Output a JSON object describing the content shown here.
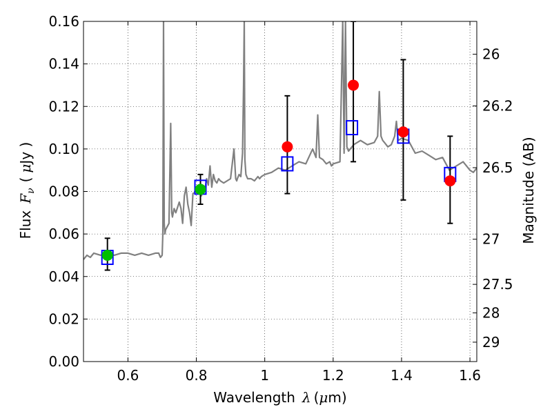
{
  "chart_data": {
    "type": "scatter",
    "title": "",
    "xlabel": "Wavelength",
    "xlabel_symbol": "λ",
    "xlabel_unit_open": "(",
    "xlabel_unit_mu": "μ",
    "xlabel_unit_rest": "m)",
    "ylabel": "Flux",
    "ylabel_symbol_base": "F",
    "ylabel_symbol_sub": "ν",
    "ylabel_unit_open": "(",
    "ylabel_unit_mu": "μ",
    "ylabel_unit_rest": "Jy )",
    "y2label": "Magnitude (AB)",
    "xlim": [
      0.47,
      1.62
    ],
    "ylim": [
      0.0,
      0.16
    ],
    "grid": true,
    "x_ticks": [
      {
        "value": 0.6,
        "label": "0.6"
      },
      {
        "value": 0.8,
        "label": "0.8"
      },
      {
        "value": 1.0,
        "label": "1"
      },
      {
        "value": 1.2,
        "label": "1.2"
      },
      {
        "value": 1.4,
        "label": "1.4"
      },
      {
        "value": 1.6,
        "label": "1.6"
      }
    ],
    "y_ticks": [
      {
        "value": 0.0,
        "label": "0.00"
      },
      {
        "value": 0.02,
        "label": "0.02"
      },
      {
        "value": 0.04,
        "label": "0.04"
      },
      {
        "value": 0.06,
        "label": "0.06"
      },
      {
        "value": 0.08,
        "label": "0.08"
      },
      {
        "value": 0.1,
        "label": "0.10"
      },
      {
        "value": 0.12,
        "label": "0.12"
      },
      {
        "value": 0.14,
        "label": "0.14"
      },
      {
        "value": 0.16,
        "label": "0.16"
      }
    ],
    "y2_ticks": [
      {
        "value": 26,
        "label": "26"
      },
      {
        "value": 26.2,
        "label": "26.2"
      },
      {
        "value": 26.5,
        "label": "26.5"
      },
      {
        "value": 27,
        "label": "27"
      },
      {
        "value": 27.5,
        "label": "27.5"
      },
      {
        "value": 28,
        "label": "28"
      },
      {
        "value": 29,
        "label": "29"
      }
    ],
    "model_spectrum": {
      "color": "#808080",
      "x": [
        0.47,
        0.48,
        0.49,
        0.5,
        0.52,
        0.54,
        0.56,
        0.58,
        0.6,
        0.62,
        0.64,
        0.66,
        0.68,
        0.69,
        0.695,
        0.7,
        0.702,
        0.704,
        0.706,
        0.708,
        0.71,
        0.72,
        0.725,
        0.728,
        0.73,
        0.735,
        0.74,
        0.75,
        0.755,
        0.76,
        0.765,
        0.77,
        0.775,
        0.78,
        0.785,
        0.79,
        0.8,
        0.81,
        0.815,
        0.82,
        0.825,
        0.83,
        0.835,
        0.84,
        0.845,
        0.85,
        0.855,
        0.86,
        0.865,
        0.87,
        0.88,
        0.89,
        0.9,
        0.91,
        0.915,
        0.918,
        0.92,
        0.925,
        0.93,
        0.935,
        0.938,
        0.94,
        0.942,
        0.945,
        0.95,
        0.96,
        0.97,
        0.98,
        0.985,
        0.99,
        1.0,
        1.02,
        1.04,
        1.06,
        1.08,
        1.1,
        1.12,
        1.14,
        1.15,
        1.155,
        1.16,
        1.17,
        1.18,
        1.19,
        1.195,
        1.2,
        1.22,
        1.228,
        1.232,
        1.236,
        1.24,
        1.245,
        1.25,
        1.26,
        1.28,
        1.3,
        1.32,
        1.33,
        1.335,
        1.34,
        1.345,
        1.35,
        1.36,
        1.37,
        1.38,
        1.385,
        1.39,
        1.4,
        1.42,
        1.44,
        1.46,
        1.48,
        1.5,
        1.52,
        1.54,
        1.56,
        1.58,
        1.6,
        1.61,
        1.62
      ],
      "y": [
        0.048,
        0.05,
        0.049,
        0.051,
        0.05,
        0.051,
        0.05,
        0.051,
        0.051,
        0.05,
        0.051,
        0.05,
        0.051,
        0.051,
        0.049,
        0.05,
        0.06,
        0.16,
        0.065,
        0.06,
        0.062,
        0.065,
        0.112,
        0.07,
        0.068,
        0.072,
        0.07,
        0.075,
        0.072,
        0.065,
        0.078,
        0.082,
        0.074,
        0.07,
        0.064,
        0.079,
        0.08,
        0.079,
        0.078,
        0.082,
        0.081,
        0.086,
        0.083,
        0.092,
        0.082,
        0.088,
        0.085,
        0.084,
        0.086,
        0.085,
        0.084,
        0.085,
        0.086,
        0.1,
        0.086,
        0.085,
        0.086,
        0.088,
        0.087,
        0.098,
        0.13,
        0.16,
        0.095,
        0.088,
        0.086,
        0.086,
        0.085,
        0.087,
        0.086,
        0.087,
        0.088,
        0.089,
        0.091,
        0.09,
        0.092,
        0.094,
        0.093,
        0.1,
        0.096,
        0.116,
        0.096,
        0.095,
        0.093,
        0.094,
        0.092,
        0.093,
        0.094,
        0.16,
        0.098,
        0.16,
        0.101,
        0.099,
        0.1,
        0.102,
        0.104,
        0.102,
        0.103,
        0.106,
        0.127,
        0.106,
        0.104,
        0.103,
        0.101,
        0.102,
        0.106,
        0.113,
        0.104,
        0.105,
        0.104,
        0.098,
        0.099,
        0.097,
        0.095,
        0.096,
        0.09,
        0.092,
        0.094,
        0.09,
        0.089,
        0.091
      ]
    },
    "series": [
      {
        "marker": "square",
        "color": "#0000ff",
        "x": [
          0.54,
          0.812,
          1.066,
          1.255,
          1.405,
          1.542
        ],
        "y": [
          0.049,
          0.082,
          0.093,
          0.11,
          0.106,
          0.088
        ]
      },
      {
        "marker": "circle",
        "color": "#00bf00",
        "x": [
          0.54,
          0.812
        ],
        "y": [
          0.05,
          0.081
        ],
        "yerr_low": [
          0.043,
          0.074
        ],
        "yerr_high": [
          0.058,
          0.088
        ]
      },
      {
        "marker": "circle",
        "color": "#ff0000",
        "x": [
          1.066,
          1.259,
          1.405,
          1.542
        ],
        "y": [
          0.101,
          0.13,
          0.108,
          0.085
        ],
        "yerr_low": [
          0.079,
          0.094,
          0.076,
          0.065
        ],
        "yerr_high": [
          0.125,
          0.16,
          0.142,
          0.106
        ]
      }
    ]
  }
}
